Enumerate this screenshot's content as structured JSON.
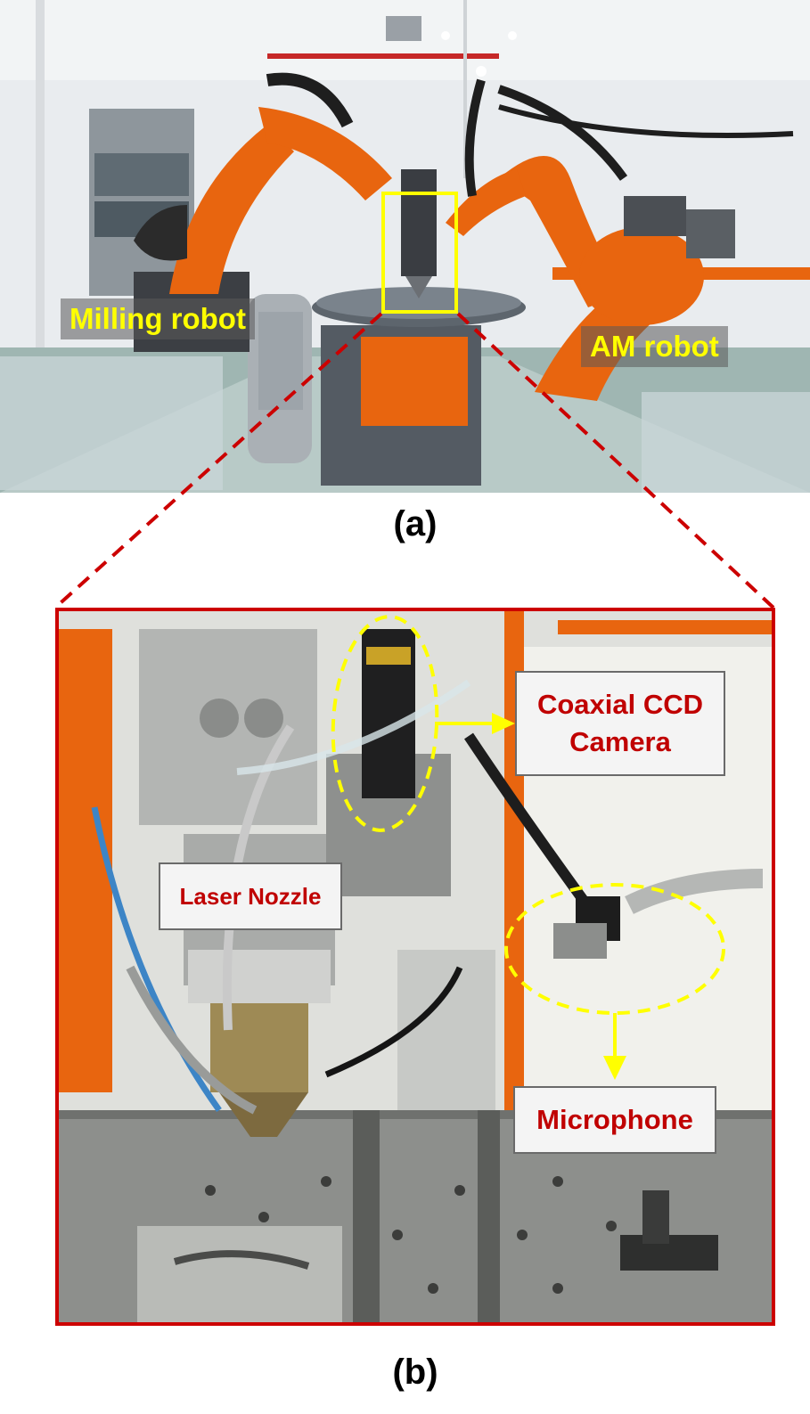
{
  "figure": {
    "panel_a": {
      "caption": "(a)",
      "labels": {
        "milling_robot": "Milling robot",
        "am_robot": "AM robot"
      }
    },
    "panel_b": {
      "caption": "(b)",
      "labels": {
        "coaxial_ccd_camera_line1": "Coaxial CCD",
        "coaxial_ccd_camera_line2": "Camera",
        "laser_nozzle": "Laser Nozzle",
        "microphone": "Microphone"
      }
    },
    "colors": {
      "robot_orange": "#e8650f",
      "highlight_yellow": "#ffff00",
      "callout_red": "#c00000",
      "frame_red": "#cc0000"
    }
  }
}
